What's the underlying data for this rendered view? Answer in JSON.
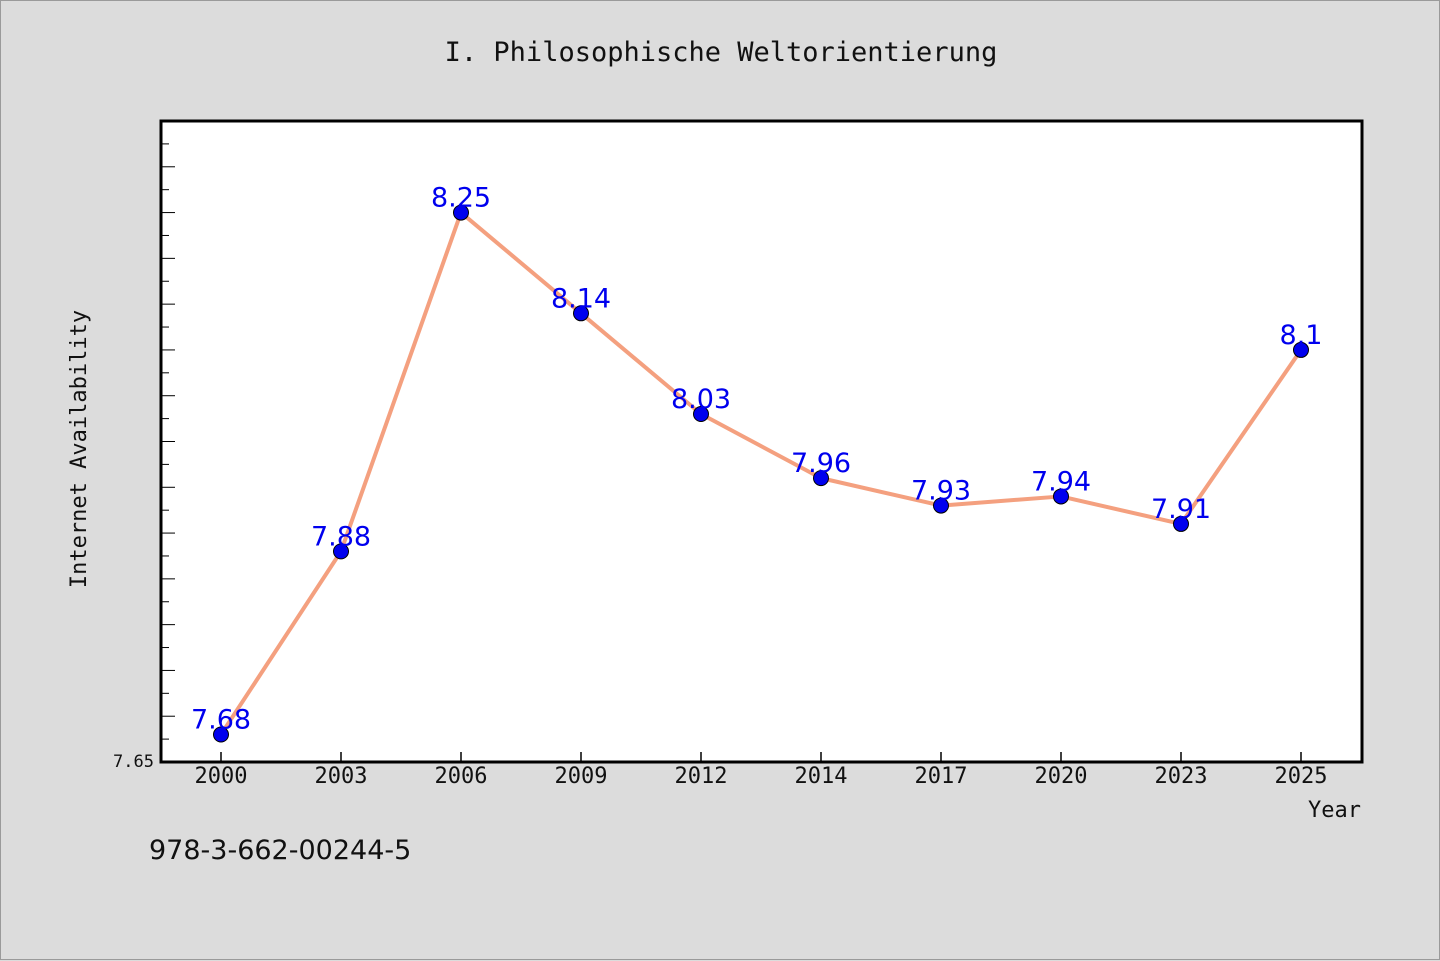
{
  "chart_data": {
    "type": "line",
    "title": "I. Philosophische Weltorientierung",
    "xlabel": "Year",
    "ylabel": "Internet Availability",
    "categories": [
      "2000",
      "2003",
      "2006",
      "2009",
      "2012",
      "2014",
      "2017",
      "2020",
      "2023",
      "2025"
    ],
    "series": [
      {
        "values": [
          7.68,
          7.88,
          8.25,
          8.14,
          8.03,
          7.96,
          7.93,
          7.94,
          7.91,
          8.1
        ],
        "labels": [
          "7.68",
          "7.88",
          "8.25",
          "8.14",
          "8.03",
          "7.96",
          "7.93",
          "7.94",
          "7.91",
          "8.1"
        ],
        "line_color": "#f4a07f",
        "marker_color": "#0000ee"
      }
    ],
    "ylim": [
      7.65,
      8.35
    ],
    "yticks_labeled": [
      "7.65"
    ],
    "grid": false,
    "legend": "none"
  },
  "footer": {
    "isbn": "978-3-662-00244-5"
  }
}
